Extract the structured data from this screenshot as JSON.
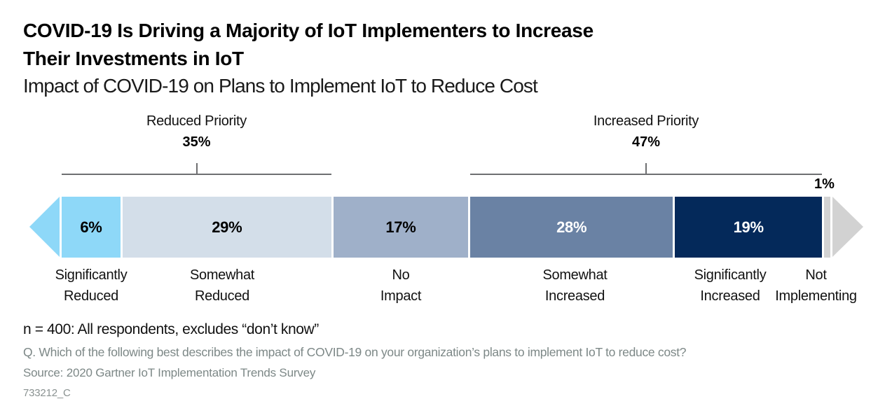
{
  "header": {
    "title": "COVID-19 Is Driving a Majority of IoT Implementers to Increase\nTheir Investments in IoT",
    "subtitle": "Impact of COVID-19 on Plans to Implement IoT to Reduce Cost"
  },
  "chart_data": {
    "type": "bar",
    "orientation": "horizontal-stacked-divergent",
    "unit": "%",
    "segments": [
      {
        "label": "Significantly\nReduced",
        "value": 6,
        "value_label": "6%",
        "color": "#8ED8F8",
        "text_color": "#000000",
        "value_label_outside": false
      },
      {
        "label": "Somewhat\nReduced",
        "value": 29,
        "value_label": "29%",
        "color": "#D3DEE9",
        "text_color": "#000000",
        "value_label_outside": false
      },
      {
        "label": "No\nImpact",
        "value": 17,
        "value_label": "17%",
        "color": "#9FB0C9",
        "text_color": "#000000",
        "value_label_outside": false
      },
      {
        "label": "Somewhat\nIncreased",
        "value": 28,
        "value_label": "28%",
        "color": "#6A82A4",
        "text_color": "#FFFFFF",
        "value_label_outside": false
      },
      {
        "label": "Significantly\nIncreased",
        "value": 19,
        "value_label": "19%",
        "color": "#04295A",
        "text_color": "#FFFFFF",
        "value_label_outside": false
      },
      {
        "label": "Not\nImplementing",
        "value": 1,
        "value_label": "1%",
        "color": "#D2D2D2",
        "text_color": "#000000",
        "value_label_outside": true
      }
    ],
    "groups": [
      {
        "label": "Reduced Priority",
        "value_label": "35%",
        "span": [
          0,
          1
        ]
      },
      {
        "label": "Increased Priority",
        "value_label": "47%",
        "span": [
          3,
          4
        ]
      }
    ],
    "arrows": {
      "left_color": "#8ED8F8",
      "right_color": "#D2D2D2"
    },
    "line_color": "#6e6f71"
  },
  "footer": {
    "base_note": "n = 400: All respondents, excludes “don’t know”",
    "question": "Q. Which of the following best describes the impact of COVID-19 on your organization’s plans to implement IoT to reduce cost?",
    "source": "Source: 2020 Gartner IoT Implementation Trends Survey",
    "doc_code": "733212_C"
  }
}
